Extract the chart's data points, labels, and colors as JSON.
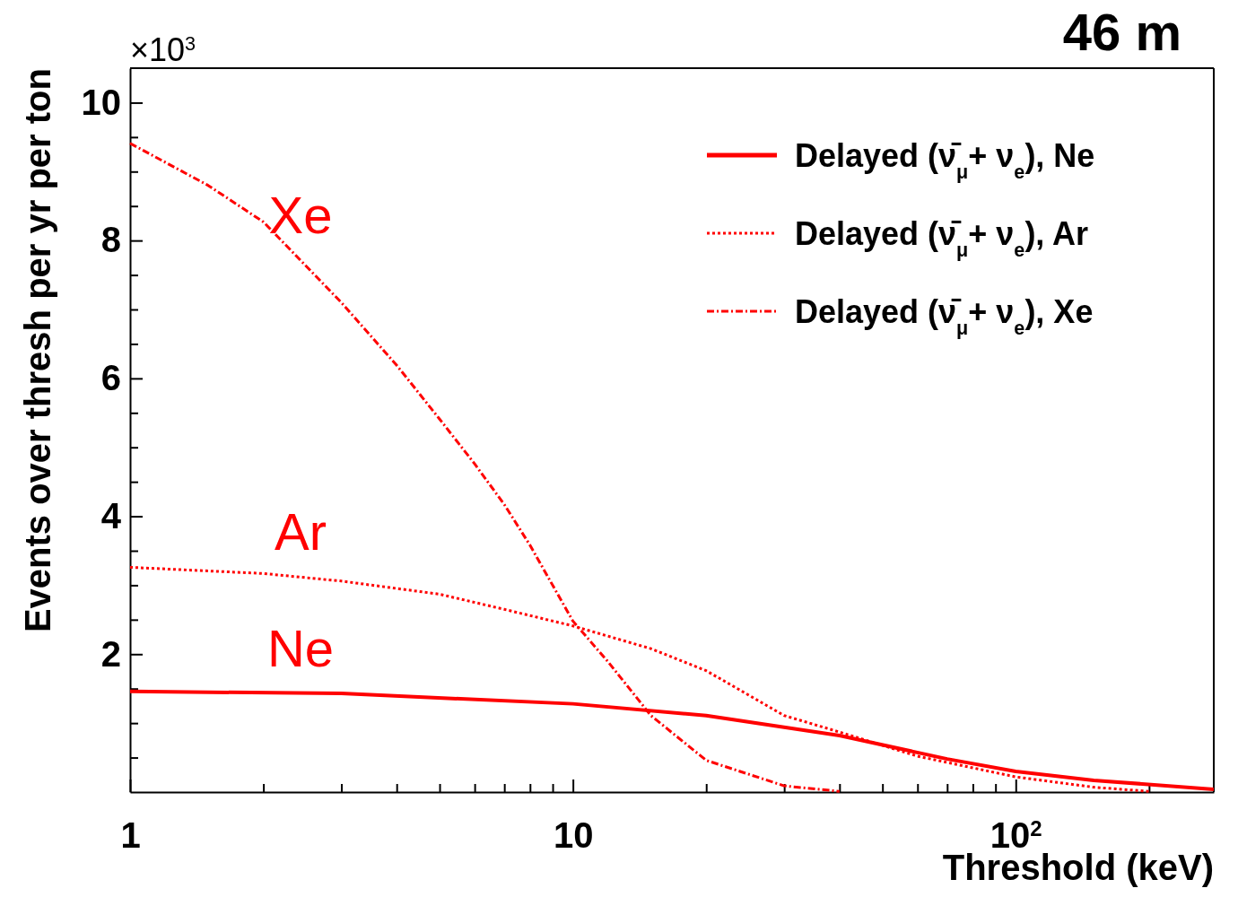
{
  "chart_data": {
    "type": "line",
    "title": "46 m",
    "xlabel": "Threshold (keV)",
    "ylabel": "Events over thresh per yr per ton",
    "log": "x",
    "grid": false,
    "legend": "top right",
    "marker": "none",
    "xlim": [
      1,
      280
    ],
    "ylim": [
      0,
      10.5
    ],
    "xticks": [
      1,
      {
        "value": 2,
        "label": null
      },
      {
        "value": 3,
        "label": null
      },
      {
        "value": 4,
        "label": null
      },
      {
        "value": 5,
        "label": null
      },
      {
        "value": 6,
        "label": null
      },
      {
        "value": 7,
        "label": null
      },
      {
        "value": 8,
        "label": null
      },
      {
        "value": 9,
        "label": null
      },
      10,
      {
        "value": 20,
        "label": null
      },
      {
        "value": 30,
        "label": null
      },
      {
        "value": 40,
        "label": null
      },
      {
        "value": 50,
        "label": null
      },
      {
        "value": 60,
        "label": null
      },
      {
        "value": 70,
        "label": null
      },
      {
        "value": 80,
        "label": null
      },
      {
        "value": 90,
        "label": null
      },
      {
        "value": 100,
        "label": "10$^{2}$"
      },
      {
        "value": 200,
        "label": null
      }
    ],
    "yticks": [
      {
        "value": 0.5,
        "label": null
      },
      {
        "value": 1,
        "label": null
      },
      {
        "value": 1.5,
        "label": null
      },
      2,
      {
        "value": 2.5,
        "label": null
      },
      {
        "value": 3,
        "label": null
      },
      {
        "value": 3.5,
        "label": null
      },
      4,
      {
        "value": 4.5,
        "label": null
      },
      {
        "value": 5,
        "label": null
      },
      {
        "value": 5.5,
        "label": null
      },
      6,
      {
        "value": 6.5,
        "label": null
      },
      {
        "value": 7,
        "label": null
      },
      {
        "value": 7.5,
        "label": null
      },
      8,
      {
        "value": 8.5,
        "label": null
      },
      {
        "value": 9,
        "label": null
      },
      {
        "value": 9.5,
        "label": null
      },
      10
    ],
    "annotations": [
      "×10$^{3}$",
      "Xe",
      "Ar",
      "Ne"
    ],
    "series": [
      {
        "name": "Delayed (ν̄$_{μ}$+ ν$_{e}$), Ne",
        "color": "#ff0000",
        "line_style": "solid",
        "x": [
          1,
          3,
          10,
          20,
          40,
          70,
          100,
          150,
          280
        ],
        "values": [
          1.46,
          1.43,
          1.28,
          1.11,
          0.82,
          0.48,
          0.3,
          0.17,
          0.04
        ]
      },
      {
        "name": "Delayed (ν̄$_{μ}$+ ν$_{e}$), Ar",
        "color": "#ff0000",
        "line_style": "dotted",
        "x": [
          1,
          2,
          3,
          5,
          7,
          10,
          15,
          20,
          30,
          40,
          60,
          100,
          150,
          200
        ],
        "values": [
          3.26,
          3.17,
          3.06,
          2.87,
          2.65,
          2.41,
          2.08,
          1.76,
          1.11,
          0.87,
          0.52,
          0.22,
          0.07,
          0.01
        ]
      },
      {
        "name": "Delayed (ν̄$_{μ}$+ ν$_{e}$), Xe",
        "color": "#ff0000",
        "line_style": "dashed",
        "x": [
          1,
          1.5,
          2,
          3,
          4,
          5,
          6,
          7,
          8,
          10,
          12,
          15,
          20,
          30,
          40
        ],
        "values": [
          9.41,
          8.8,
          8.27,
          7.1,
          6.19,
          5.41,
          4.76,
          4.17,
          3.58,
          2.48,
          1.89,
          1.11,
          0.46,
          0.09,
          0.01
        ]
      }
    ]
  }
}
